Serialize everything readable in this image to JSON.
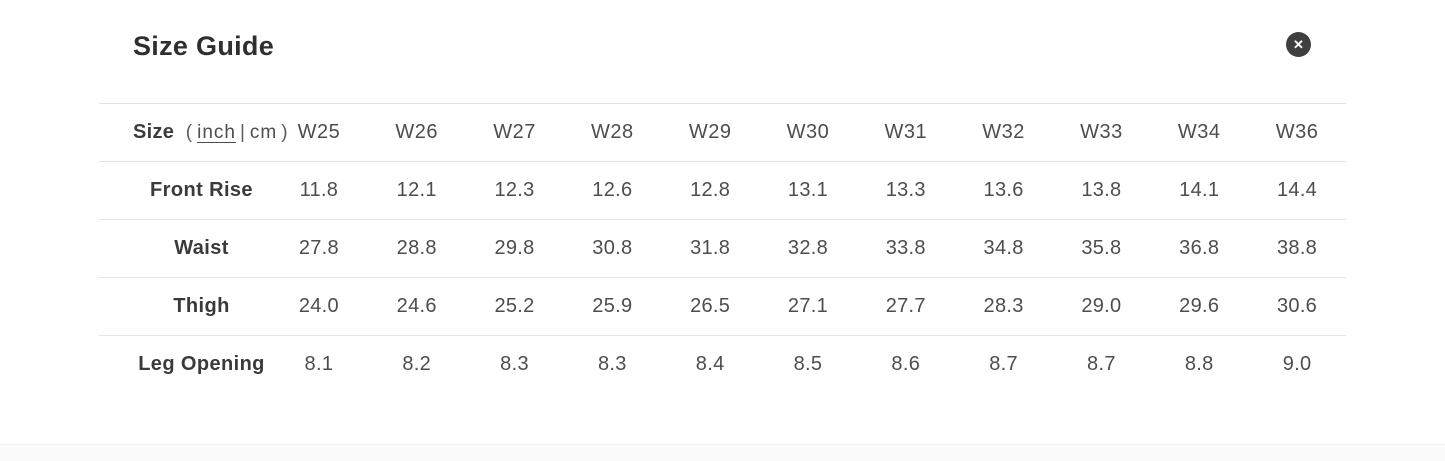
{
  "modal": {
    "title": "Size Guide",
    "close_icon": "✕"
  },
  "table": {
    "size_label": "Size",
    "unit_open_paren": "(",
    "unit_inch": "inch",
    "unit_divider": "|",
    "unit_cm": "cm",
    "unit_close_paren": ")",
    "active_unit": "inch",
    "columns": [
      "W25",
      "W26",
      "W27",
      "W28",
      "W29",
      "W30",
      "W31",
      "W32",
      "W33",
      "W34",
      "W36"
    ],
    "rows": [
      {
        "label": "Front Rise",
        "values": [
          "11.8",
          "12.1",
          "12.3",
          "12.6",
          "12.8",
          "13.1",
          "13.3",
          "13.6",
          "13.8",
          "14.1",
          "14.4"
        ]
      },
      {
        "label": "Waist",
        "values": [
          "27.8",
          "28.8",
          "29.8",
          "30.8",
          "31.8",
          "32.8",
          "33.8",
          "34.8",
          "35.8",
          "36.8",
          "38.8"
        ]
      },
      {
        "label": "Thigh",
        "values": [
          "24.0",
          "24.6",
          "25.2",
          "25.9",
          "26.5",
          "27.1",
          "27.7",
          "28.3",
          "29.0",
          "29.6",
          "30.6"
        ]
      },
      {
        "label": "Leg Opening",
        "values": [
          "8.1",
          "8.2",
          "8.3",
          "8.3",
          "8.4",
          "8.5",
          "8.6",
          "8.7",
          "8.7",
          "8.8",
          "9.0"
        ]
      }
    ]
  },
  "colors": {
    "title_text": "#2f2f2f",
    "close_button_bg": "#3f3f3f",
    "close_icon": "#ffffff",
    "table_border": "#e2e2e2",
    "row_label_text": "#3a3a3a",
    "cell_text": "#4d4d4d",
    "background": "#ffffff"
  }
}
